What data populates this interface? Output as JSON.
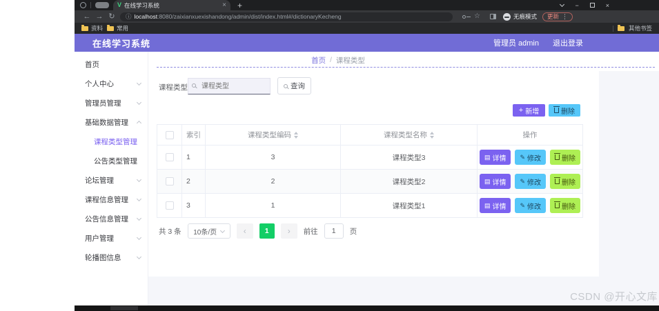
{
  "browser": {
    "tab_title": "在线学习系统",
    "url_host": "localhost",
    "url_rest": ":8080/zaixianxuexishandong/admin/dist/index.html#/dictionaryKecheng",
    "bookmarks": [
      "资料",
      "常用"
    ],
    "other_bookmarks": "其他书签",
    "incognito_label": "无痕模式",
    "update_label": "更新"
  },
  "icons": {
    "close": "×",
    "new_tab": "+",
    "back": "←",
    "forward": "→",
    "reload": "↻",
    "info": "ⓘ",
    "star": "☆",
    "menu_dots": "⋮",
    "minimize": "−",
    "favicon": "V",
    "plus": "+",
    "edit_pencil": "✎",
    "detail_doc": "▤",
    "breadcrumb_sep": "/",
    "prev": "‹",
    "next": "›"
  },
  "app_header": {
    "title": "在线学习系统",
    "user": "管理员 admin",
    "logout": "退出登录"
  },
  "sidebar": {
    "items": [
      {
        "label": "首页"
      },
      {
        "label": "个人中心"
      },
      {
        "label": "管理员管理"
      },
      {
        "label": "基础数据管理"
      },
      {
        "label": "课程类型管理"
      },
      {
        "label": "公告类型管理"
      },
      {
        "label": "论坛管理"
      },
      {
        "label": "课程信息管理"
      },
      {
        "label": "公告信息管理"
      },
      {
        "label": "用户管理"
      },
      {
        "label": "轮播图信息"
      }
    ]
  },
  "breadcrumb": {
    "home": "首页",
    "current": "课程类型"
  },
  "filters": {
    "label": "课程类型",
    "placeholder": "课程类型",
    "query": "查询"
  },
  "toolbar": {
    "add": "新增",
    "delete": "删除"
  },
  "table": {
    "headers": {
      "index": "索引",
      "code": "课程类型编码",
      "name": "课程类型名称",
      "ops": "操作"
    },
    "rows": [
      {
        "index": "1",
        "code": "3",
        "name": "课程类型3"
      },
      {
        "index": "2",
        "code": "2",
        "name": "课程类型2"
      },
      {
        "index": "3",
        "code": "1",
        "name": "课程类型1"
      }
    ],
    "actions": {
      "detail": "详情",
      "edit": "修改",
      "delete": "删除"
    }
  },
  "pagination": {
    "total": "共 3 条",
    "page_size": "10条/页",
    "page": "1",
    "goto": "前往",
    "goto_value": "1",
    "unit": "页"
  },
  "watermark": "CSDN @开心文库",
  "colors": {
    "header_purple": "#716cd6",
    "accent_purple": "#7b62f0",
    "sky_blue": "#56c7f9",
    "lime_green": "#aeef54",
    "page_active_green": "#13ce66"
  }
}
